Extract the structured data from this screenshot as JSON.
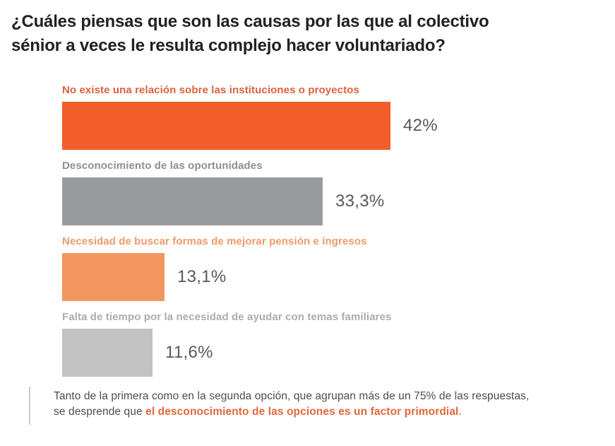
{
  "title": {
    "lines": [
      "¿Cuáles piensas que son las causas por las que al colectivo",
      "sénior a veces le resulta complejo hacer voluntariado?"
    ]
  },
  "chart_data": {
    "type": "bar",
    "orientation": "horizontal",
    "categories": [
      "No existe una relación sobre las instituciones o proyectos",
      "Desconocimiento de las oportunidades",
      "Necesidad de buscar formas de mejorar pensión e ingresos",
      "Falta de tiempo por la necesidad de ayudar con temas familiares"
    ],
    "values": [
      42,
      33.3,
      13.1,
      11.6
    ],
    "value_labels": [
      "42%",
      "33,3%",
      "13,1%",
      "11,6%"
    ],
    "bar_colors": [
      "#F15E29",
      "#999C9C",
      "#F2965F",
      "#C2C2C2"
    ],
    "label_colors": [
      "#DC6140",
      "#8D9090",
      "#F09A68",
      "#ACACAC"
    ],
    "xlim": [
      0,
      42
    ],
    "title": "¿Cuáles piensas que son las causas por las que al colectivo sénior a veces le resulta complejo hacer voluntariado?",
    "xlabel": "",
    "ylabel": "",
    "grid": false,
    "legend": false
  },
  "note": {
    "line1": "Tanto de la primera como en la segunda opción, que agrupan más de un 75% de las respuestas,",
    "line2_before": "se desprende que ",
    "highlight": "el desconocimiento de las opciones es un factor primordial",
    "line2_after": "."
  },
  "colors": {
    "accent_orange": "#F15E29",
    "accent_orange_light": "#F2965F",
    "gray_dark": "#999C9C",
    "gray_light": "#C2C2C2",
    "value_text": "#58595B",
    "note_text": "#4D4D4D",
    "note_highlight": "#E2673C",
    "note_rule": "#CBCBCB",
    "title_text": "#212121"
  }
}
